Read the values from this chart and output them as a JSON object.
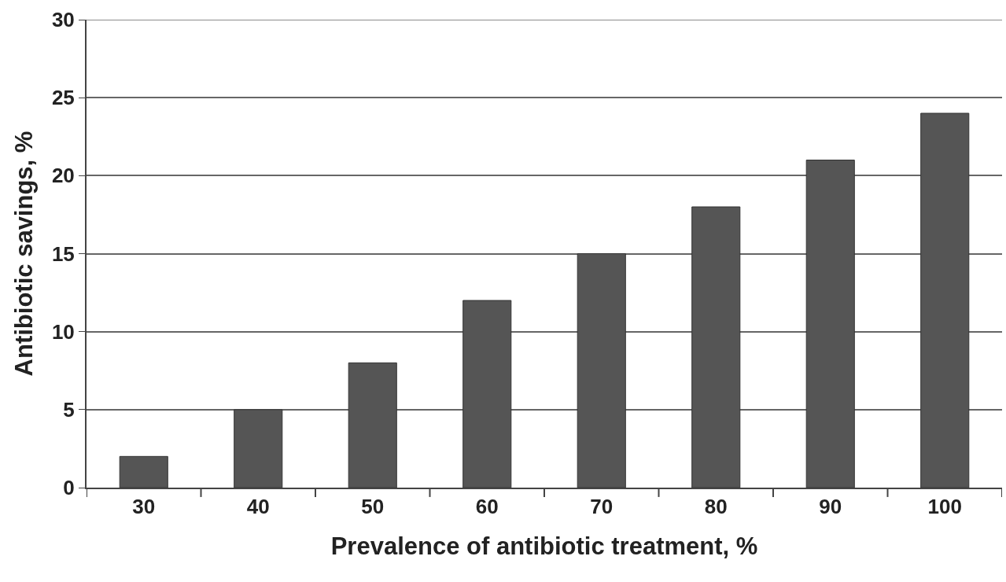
{
  "chart_data": {
    "type": "bar",
    "xlabel": "Prevalence of antibiotic treatment, %",
    "ylabel": "Antibiotic savings, %",
    "categories": [
      "30",
      "40",
      "50",
      "60",
      "70",
      "80",
      "90",
      "100"
    ],
    "values": [
      2,
      5,
      8,
      12,
      15,
      18,
      21,
      24
    ],
    "color": "#555555",
    "ylim": [
      0,
      30
    ],
    "yticks": [
      0,
      5,
      10,
      15,
      20,
      25,
      30
    ],
    "grid": "y"
  }
}
